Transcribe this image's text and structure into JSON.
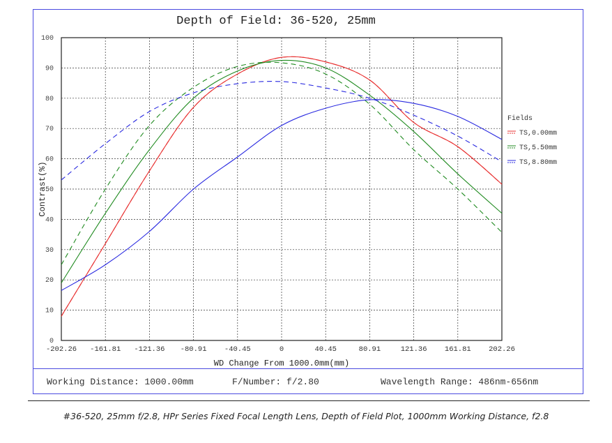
{
  "chart_data": {
    "type": "line",
    "title": "Depth of Field: 36-520, 25mm",
    "xlabel": "WD Change From 1000.0mm(mm)",
    "ylabel": "Contrast(%)",
    "xlim": [
      -202.26,
      202.26
    ],
    "ylim": [
      0,
      100
    ],
    "xticks": [
      "-202.26",
      "-161.81",
      "-121.36",
      "-80.91",
      "-40.45",
      "0",
      "40.45",
      "80.91",
      "121.36",
      "161.81",
      "202.26"
    ],
    "yticks": [
      "0",
      "10",
      "20",
      "30",
      "40",
      "50",
      "60",
      "70",
      "80",
      "90",
      "100"
    ],
    "grid": true,
    "legend": {
      "title": "Fields",
      "placement": "right",
      "entries": [
        "TS,0.00mm",
        "TS,5.50mm",
        "TS,8.80mm"
      ]
    },
    "x": [
      -202.26,
      -161.81,
      -121.36,
      -80.91,
      -40.45,
      0,
      40.45,
      80.91,
      121.36,
      161.81,
      202.26
    ],
    "series": [
      {
        "name": "TS,0.00mm T",
        "color": "#e83030",
        "dash": false,
        "values": [
          8,
          32,
          56,
          77,
          88,
          93.5,
          92,
          86,
          72,
          64,
          51.6
        ]
      },
      {
        "name": "TS,0.00mm S",
        "color": "#e83030",
        "dash": true,
        "values": [
          8,
          32,
          56,
          77,
          88,
          93.5,
          92,
          86,
          72,
          64,
          51.6
        ]
      },
      {
        "name": "TS,5.50mm T",
        "color": "#1f8a1f",
        "dash": false,
        "values": [
          19,
          42,
          63,
          80,
          89,
          92.5,
          90,
          81,
          69,
          55,
          42
        ]
      },
      {
        "name": "TS,5.50mm S",
        "color": "#1f8a1f",
        "dash": true,
        "values": [
          25,
          50,
          71,
          83.6,
          90.5,
          91.7,
          88,
          78,
          63,
          50,
          35.7
        ]
      },
      {
        "name": "TS,8.80mm T",
        "color": "#2828e0",
        "dash": false,
        "values": [
          16.5,
          25,
          36,
          50,
          60.6,
          71,
          76.7,
          79.5,
          78.3,
          74,
          66.4
        ]
      },
      {
        "name": "TS,8.80mm S",
        "color": "#2828e0",
        "dash": true,
        "values": [
          53,
          65,
          75.6,
          81.8,
          84.8,
          85.5,
          83.4,
          80,
          74.4,
          67.5,
          59
        ]
      }
    ]
  },
  "footer": {
    "working_distance": "Working Distance: 1000.00mm",
    "f_number": "F/Number: f/2.80",
    "wavelength": "Wavelength Range: 486nm-656nm"
  },
  "caption": "#36-520, 25mm f/2.8, HPr Series Fixed Focal Length Lens, Depth of Field Plot, 1000mm Working Distance, f2.8"
}
